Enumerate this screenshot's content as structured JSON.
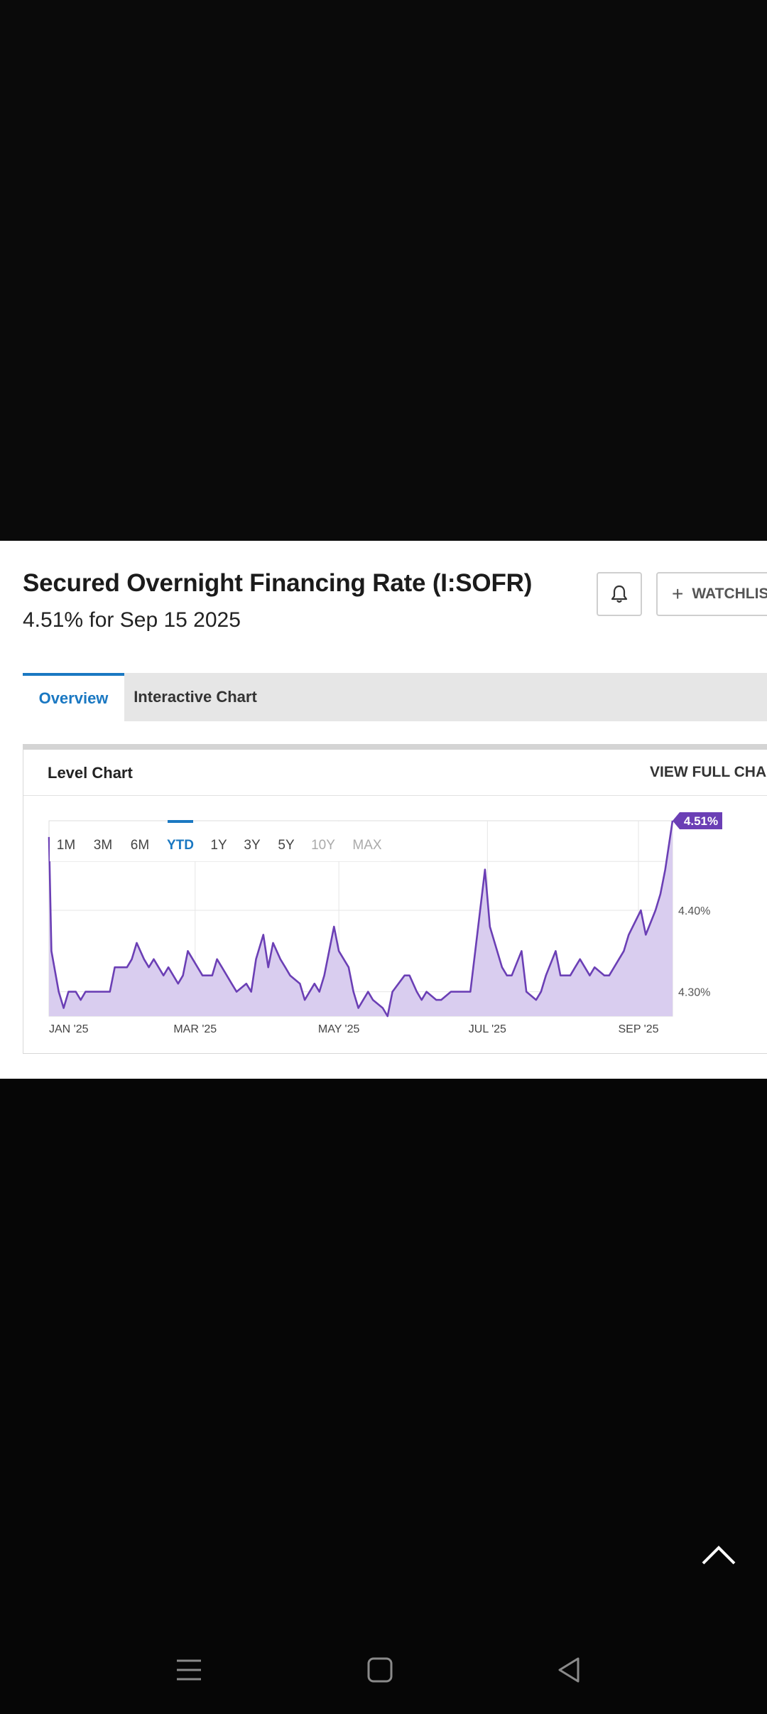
{
  "header": {
    "title": "Secured Overnight Financing Rate (I:SOFR)",
    "subtitle": "4.51% for Sep 15 2025"
  },
  "actions": {
    "watchlist_label": "WATCHLIST",
    "bell_icon": "bell-icon",
    "plus_icon": "plus-icon"
  },
  "tabs": [
    {
      "label": "Overview",
      "active": true
    },
    {
      "label": "Interactive Chart",
      "active": false
    }
  ],
  "chart_panel": {
    "title": "Level Chart",
    "view_full_label": "VIEW FULL CHART",
    "ranges": [
      "1M",
      "3M",
      "6M",
      "YTD",
      "1Y",
      "3Y",
      "5Y",
      "10Y",
      "MAX"
    ],
    "selected_range": "YTD",
    "disabled_ranges": [
      "10Y",
      "MAX"
    ],
    "current_value_label": "4.51%"
  },
  "chart_data": {
    "type": "area",
    "title": "",
    "xlabel": "",
    "ylabel": "",
    "x_tick_labels": [
      "JAN '25",
      "MAR '25",
      "MAY '25",
      "JUL '25",
      "SEP '25"
    ],
    "y_tick_labels": [
      "4.40%",
      "4.30%"
    ],
    "ylim": [
      4.27,
      4.51
    ],
    "grid": true,
    "series": [
      {
        "color": "#6b3fb5",
        "fill": "#d9cdef",
        "points": [
          [
            "2025-01-02",
            4.49
          ],
          [
            "2025-01-03",
            4.35
          ],
          [
            "2025-01-06",
            4.3
          ],
          [
            "2025-01-08",
            4.28
          ],
          [
            "2025-01-10",
            4.3
          ],
          [
            "2025-01-13",
            4.3
          ],
          [
            "2025-01-15",
            4.29
          ],
          [
            "2025-01-17",
            4.3
          ],
          [
            "2025-01-21",
            4.3
          ],
          [
            "2025-01-23",
            4.3
          ],
          [
            "2025-01-27",
            4.3
          ],
          [
            "2025-01-29",
            4.33
          ],
          [
            "2025-01-31",
            4.33
          ],
          [
            "2025-02-03",
            4.33
          ],
          [
            "2025-02-05",
            4.34
          ],
          [
            "2025-02-07",
            4.36
          ],
          [
            "2025-02-10",
            4.34
          ],
          [
            "2025-02-12",
            4.33
          ],
          [
            "2025-02-14",
            4.34
          ],
          [
            "2025-02-18",
            4.32
          ],
          [
            "2025-02-20",
            4.33
          ],
          [
            "2025-02-24",
            4.31
          ],
          [
            "2025-02-26",
            4.32
          ],
          [
            "2025-02-28",
            4.35
          ],
          [
            "2025-03-04",
            4.33
          ],
          [
            "2025-03-06",
            4.32
          ],
          [
            "2025-03-10",
            4.32
          ],
          [
            "2025-03-12",
            4.34
          ],
          [
            "2025-03-14",
            4.33
          ],
          [
            "2025-03-18",
            4.31
          ],
          [
            "2025-03-20",
            4.3
          ],
          [
            "2025-03-24",
            4.31
          ],
          [
            "2025-03-26",
            4.3
          ],
          [
            "2025-03-28",
            4.34
          ],
          [
            "2025-03-31",
            4.37
          ],
          [
            "2025-04-02",
            4.33
          ],
          [
            "2025-04-04",
            4.36
          ],
          [
            "2025-04-07",
            4.34
          ],
          [
            "2025-04-09",
            4.33
          ],
          [
            "2025-04-11",
            4.32
          ],
          [
            "2025-04-15",
            4.31
          ],
          [
            "2025-04-17",
            4.29
          ],
          [
            "2025-04-21",
            4.31
          ],
          [
            "2025-04-23",
            4.3
          ],
          [
            "2025-04-25",
            4.32
          ],
          [
            "2025-04-29",
            4.38
          ],
          [
            "2025-05-01",
            4.35
          ],
          [
            "2025-05-05",
            4.33
          ],
          [
            "2025-05-07",
            4.3
          ],
          [
            "2025-05-09",
            4.28
          ],
          [
            "2025-05-13",
            4.3
          ],
          [
            "2025-05-15",
            4.29
          ],
          [
            "2025-05-19",
            4.28
          ],
          [
            "2025-05-21",
            4.27
          ],
          [
            "2025-05-23",
            4.3
          ],
          [
            "2025-05-28",
            4.32
          ],
          [
            "2025-05-30",
            4.32
          ],
          [
            "2025-06-02",
            4.3
          ],
          [
            "2025-06-04",
            4.29
          ],
          [
            "2025-06-06",
            4.3
          ],
          [
            "2025-06-10",
            4.29
          ],
          [
            "2025-06-12",
            4.29
          ],
          [
            "2025-06-16",
            4.3
          ],
          [
            "2025-06-18",
            4.3
          ],
          [
            "2025-06-20",
            4.3
          ],
          [
            "2025-06-24",
            4.3
          ],
          [
            "2025-06-26",
            4.35
          ],
          [
            "2025-06-30",
            4.45
          ],
          [
            "2025-07-02",
            4.38
          ],
          [
            "2025-07-07",
            4.33
          ],
          [
            "2025-07-09",
            4.32
          ],
          [
            "2025-07-11",
            4.32
          ],
          [
            "2025-07-15",
            4.35
          ],
          [
            "2025-07-17",
            4.3
          ],
          [
            "2025-07-21",
            4.29
          ],
          [
            "2025-07-23",
            4.3
          ],
          [
            "2025-07-25",
            4.32
          ],
          [
            "2025-07-29",
            4.35
          ],
          [
            "2025-07-31",
            4.32
          ],
          [
            "2025-08-04",
            4.32
          ],
          [
            "2025-08-06",
            4.33
          ],
          [
            "2025-08-08",
            4.34
          ],
          [
            "2025-08-12",
            4.32
          ],
          [
            "2025-08-14",
            4.33
          ],
          [
            "2025-08-18",
            4.32
          ],
          [
            "2025-08-20",
            4.32
          ],
          [
            "2025-08-22",
            4.33
          ],
          [
            "2025-08-26",
            4.35
          ],
          [
            "2025-08-28",
            4.37
          ],
          [
            "2025-09-02",
            4.4
          ],
          [
            "2025-09-04",
            4.37
          ],
          [
            "2025-09-08",
            4.4
          ],
          [
            "2025-09-10",
            4.42
          ],
          [
            "2025-09-12",
            4.45
          ],
          [
            "2025-09-15",
            4.51
          ]
        ]
      }
    ]
  },
  "system": {
    "scroll_top_icon": "chevron-up-icon",
    "nav_icons": [
      "menu-icon",
      "home-icon",
      "back-icon"
    ]
  }
}
